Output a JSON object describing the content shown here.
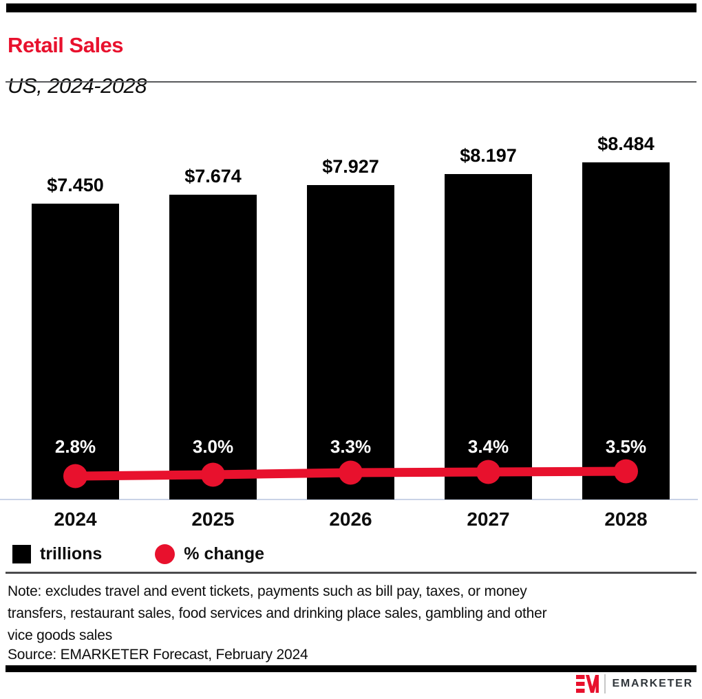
{
  "header": {
    "title": "Retail Sales",
    "subtitle": "US, 2024-2028"
  },
  "chart_data": {
    "type": "bar",
    "title": "Retail Sales",
    "subtitle": "US, 2024-2028",
    "categories": [
      "2024",
      "2025",
      "2026",
      "2027",
      "2028"
    ],
    "series": [
      {
        "name": "trillions",
        "type": "bar",
        "color": "#000000",
        "unit": "USD trillions",
        "values": [
          7.45,
          7.674,
          7.927,
          8.197,
          8.484
        ],
        "labels": [
          "$7.450",
          "$7.674",
          "$7.927",
          "$8.197",
          "$8.484"
        ]
      },
      {
        "name": "% change",
        "type": "line",
        "color": "#e8112d",
        "unit": "percent",
        "values": [
          2.8,
          3.0,
          3.3,
          3.4,
          3.5
        ],
        "labels": [
          "2.8%",
          "3.0%",
          "3.3%",
          "3.4%",
          "3.5%"
        ]
      }
    ],
    "ylim": [
      0,
      9.2
    ],
    "grid": false,
    "legend_position": "bottom-left",
    "annotations": "bar values above bars; % change labels in white inside bars above line markers"
  },
  "legend": {
    "items": [
      {
        "label": "trillions",
        "swatch": "black-square",
        "color": "#000000"
      },
      {
        "label": "% change",
        "swatch": "red-circle",
        "color": "#e8112d"
      }
    ]
  },
  "footer": {
    "note_lines": [
      "Note: excludes travel and event tickets, payments such as bill pay, taxes, or money",
      "transfers, restaurant sales, food services and drinking place sales, gambling and other",
      "vice goods sales"
    ],
    "source": "Source: EMARKETER Forecast, February 2024"
  },
  "branding": {
    "logo_mark": "EM",
    "logo_text": "EMARKETER"
  },
  "colors": {
    "accent_red": "#e8112d",
    "bar_black": "#000000",
    "axis_line": "#c9d3e6",
    "divider_gray": "#58595b"
  }
}
